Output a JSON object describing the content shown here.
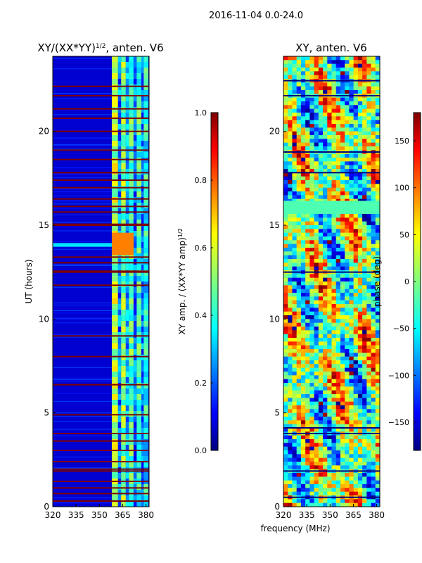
{
  "figure_title": "2016-11-04 0.0-24.0",
  "shared_xlabel": "frequency (MHz)",
  "colors": {
    "jet": [
      "#00007f",
      "#0000ff",
      "#007fff",
      "#00ffff",
      "#7fff7f",
      "#ffff00",
      "#ff7f00",
      "#ff0000",
      "#7f0000"
    ]
  },
  "chart_data": [
    {
      "type": "heatmap",
      "title": "XY/(XX*YY)",
      "title_superscript": "1/2",
      "title_suffix": ", anten. V6",
      "xlabel": "",
      "ylabel": "UT (hours)",
      "xlim": [
        320,
        382
      ],
      "ylim": [
        0,
        24
      ],
      "xticks": [
        320,
        335,
        350,
        365,
        380
      ],
      "yticks": [
        0,
        5,
        10,
        15,
        20
      ],
      "colorbar": {
        "label": "XY amp. / (XX*YY amp)",
        "label_superscript": "1/2",
        "range": [
          0.0,
          1.0
        ],
        "ticks": [
          "0.0",
          "0.2",
          "0.4",
          "0.6",
          "0.8",
          "1.0"
        ],
        "tick_values": [
          0.0,
          0.2,
          0.4,
          0.6,
          0.8,
          1.0
        ]
      },
      "flagged_hours": [
        0.3,
        0.7,
        1.0,
        1.35,
        1.9,
        2.0,
        2.4,
        3.0,
        3.5,
        3.9,
        4.9,
        6.5,
        8.0,
        9.1,
        11.8,
        12.5,
        12.55,
        13.0,
        13.3,
        15.0,
        15.05,
        15.7,
        16.0,
        16.4,
        17.0,
        17.4,
        17.8,
        18.5,
        19.0,
        20.0,
        20.7,
        21.2,
        21.9,
        22.4
      ],
      "note": "Low amplitude (~0.05) across 320-358 MHz; banded high amplitude (0.3-0.8) across 358-380 MHz; bright feature near 14 UT."
    },
    {
      "type": "heatmap",
      "title": "XY, anten. V6",
      "xlabel": "",
      "ylabel": "",
      "xlim": [
        320,
        382
      ],
      "ylim": [
        0,
        24
      ],
      "xticks": [
        320,
        335,
        350,
        365,
        380
      ],
      "yticks": [
        0,
        5,
        10,
        15,
        20
      ],
      "colorbar": {
        "label": "phase (deg)",
        "range": [
          -180,
          180
        ],
        "ticks": [
          "−150",
          "−100",
          "−50",
          "0",
          "50",
          "100",
          "150"
        ],
        "tick_values": [
          -150,
          -100,
          -50,
          0,
          50,
          100,
          150
        ]
      },
      "flagged_hours": [
        0.5,
        1.9,
        3.9,
        4.2,
        12.5,
        16.1,
        16.2,
        17.8,
        18.9,
        21.9,
        22.7
      ],
      "note": "Phase wraps across full -180..180 range with mottled structure."
    }
  ]
}
